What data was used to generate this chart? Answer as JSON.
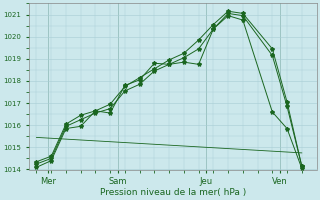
{
  "title": "",
  "xlabel": "Pression niveau de la mer( hPa )",
  "ylabel": "",
  "ylim": [
    1014,
    1021
  ],
  "yticks": [
    1014,
    1015,
    1016,
    1017,
    1018,
    1019,
    1020,
    1021
  ],
  "xtick_labels": [
    "Mer",
    "Sam",
    "Jeu",
    "Ven"
  ],
  "bg_color": "#cce8ec",
  "grid_color": "#a8cdd4",
  "line_color": "#1a6620",
  "line1": {
    "x": [
      0,
      1,
      2,
      3,
      4,
      5,
      6,
      7,
      8,
      9,
      10,
      11,
      12,
      13,
      14,
      16,
      17,
      18
    ],
    "y": [
      1014.1,
      1014.4,
      1015.85,
      1015.95,
      1016.65,
      1016.55,
      1017.8,
      1018.05,
      1018.8,
      1018.75,
      1018.85,
      1018.75,
      1020.35,
      1020.95,
      1020.75,
      1016.6,
      1015.85,
      1014.05
    ]
  },
  "line2": {
    "x": [
      0,
      1,
      2,
      3,
      4,
      5,
      6,
      7,
      8,
      9,
      10,
      11,
      12,
      13,
      14,
      16,
      17,
      18
    ],
    "y": [
      1014.25,
      1014.5,
      1015.95,
      1016.25,
      1016.55,
      1016.75,
      1017.55,
      1017.85,
      1018.45,
      1018.75,
      1019.05,
      1019.45,
      1020.35,
      1021.05,
      1020.95,
      1019.15,
      1016.85,
      1014.15
    ]
  },
  "line3": {
    "x": [
      0,
      1,
      2,
      3,
      4,
      5,
      6,
      7,
      8,
      9,
      10,
      11,
      12,
      13,
      14,
      16,
      17,
      18
    ],
    "y": [
      1014.35,
      1014.6,
      1016.05,
      1016.45,
      1016.65,
      1016.95,
      1017.75,
      1018.15,
      1018.55,
      1018.95,
      1019.25,
      1019.85,
      1020.55,
      1021.15,
      1021.05,
      1019.45,
      1017.05,
      1014.15
    ]
  },
  "line_flat": {
    "x": [
      0,
      18
    ],
    "y": [
      1015.45,
      1014.75
    ]
  },
  "xtick_positions": [
    0.8,
    5.5,
    11.5,
    16.5
  ],
  "vline_positions": [
    0.8,
    5.5,
    11.5,
    16.5
  ],
  "figsize": [
    3.2,
    2.0
  ],
  "dpi": 100
}
